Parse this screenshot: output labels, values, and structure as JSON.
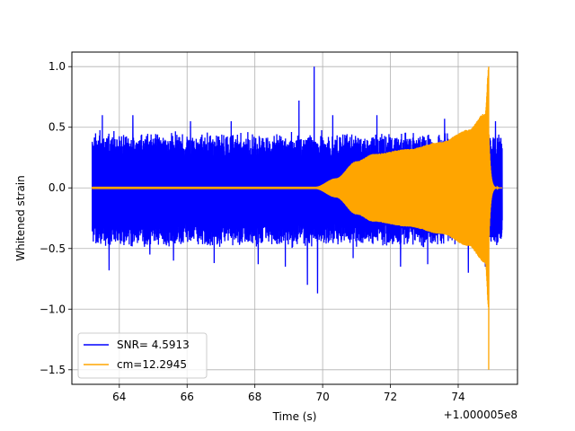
{
  "chart_data": {
    "type": "line",
    "title": "",
    "xlabel": "Time (s)",
    "ylabel": "Whitened strain",
    "x_offset_label": "+1.000005e8",
    "xlim": [
      62.6,
      75.75
    ],
    "ylim": [
      -1.62,
      1.12
    ],
    "x_ticks": [
      64,
      66,
      68,
      70,
      72,
      74
    ],
    "x_tick_labels": [
      "64",
      "66",
      "68",
      "70",
      "72",
      "74"
    ],
    "y_ticks": [
      -1.5,
      -1.0,
      -0.5,
      0.0,
      0.5,
      1.0
    ],
    "y_tick_labels": [
      "−1.5",
      "−1.0",
      "−0.5",
      "0.0",
      "0.5",
      "1.0"
    ],
    "grid": true,
    "legend_position": "lower-left",
    "series": [
      {
        "name": "SNR= 4.5913",
        "color": "#0000ff",
        "style": "noise",
        "x_range": [
          63.2,
          75.3
        ],
        "typical_amplitude": [
          -0.45,
          0.42
        ],
        "peaks": [
          {
            "x": 63.3,
            "y": 0.45
          },
          {
            "x": 63.5,
            "y": 0.6
          },
          {
            "x": 63.7,
            "y": -0.68
          },
          {
            "x": 64.4,
            "y": 0.6
          },
          {
            "x": 64.9,
            "y": -0.55
          },
          {
            "x": 65.6,
            "y": -0.6
          },
          {
            "x": 66.1,
            "y": 0.55
          },
          {
            "x": 66.8,
            "y": -0.62
          },
          {
            "x": 67.3,
            "y": 0.55
          },
          {
            "x": 68.1,
            "y": -0.63
          },
          {
            "x": 68.9,
            "y": -0.65
          },
          {
            "x": 69.3,
            "y": 0.72
          },
          {
            "x": 69.55,
            "y": -0.8
          },
          {
            "x": 69.75,
            "y": 1.0
          },
          {
            "x": 69.85,
            "y": -0.87
          },
          {
            "x": 70.3,
            "y": 0.6
          },
          {
            "x": 70.9,
            "y": -0.58
          },
          {
            "x": 71.6,
            "y": 0.6
          },
          {
            "x": 72.3,
            "y": -0.65
          },
          {
            "x": 73.1,
            "y": -0.63
          },
          {
            "x": 73.6,
            "y": 0.57
          },
          {
            "x": 74.3,
            "y": -0.7
          },
          {
            "x": 74.8,
            "y": -0.65
          },
          {
            "x": 75.1,
            "y": 0.55
          }
        ]
      },
      {
        "name": "cm=12.2945",
        "color": "#ffa500",
        "style": "chirp",
        "x_range": [
          63.2,
          75.3
        ],
        "envelope_points": [
          {
            "x": 63.2,
            "y": 0.01
          },
          {
            "x": 69.8,
            "y": 0.01
          },
          {
            "x": 70.4,
            "y": 0.08
          },
          {
            "x": 71.0,
            "y": 0.22
          },
          {
            "x": 71.5,
            "y": 0.28
          },
          {
            "x": 72.5,
            "y": 0.32
          },
          {
            "x": 73.5,
            "y": 0.38
          },
          {
            "x": 74.3,
            "y": 0.48
          },
          {
            "x": 74.8,
            "y": 0.62
          },
          {
            "x": 74.9,
            "y": 1.0
          }
        ],
        "min_point": {
          "x": 74.9,
          "y": -1.5
        },
        "ringdown_end": 75.2
      }
    ]
  }
}
